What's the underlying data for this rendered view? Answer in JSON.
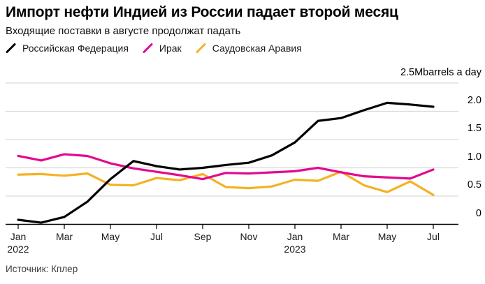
{
  "chart_data": {
    "type": "line",
    "title": "Импорт нефти Индией из России падает второй месяц",
    "subtitle": "Входящие поставки в августе продолжат падать",
    "source": "Источник: Кплер",
    "unit_label": "2.5Mbarrels a day",
    "x": [
      "Jan 2022",
      "Feb 2022",
      "Mar 2022",
      "Apr 2022",
      "May 2022",
      "Jun 2022",
      "Jul 2022",
      "Aug 2022",
      "Sep 2022",
      "Oct 2022",
      "Nov 2022",
      "Dec 2022",
      "Jan 2023",
      "Feb 2023",
      "Mar 2023",
      "Apr 2023",
      "May 2023",
      "Jun 2023",
      "Jul 2023"
    ],
    "x_ticks": [
      {
        "label": "Jan",
        "sublabel": "2022",
        "month_index": 0
      },
      {
        "label": "Mar",
        "month_index": 2
      },
      {
        "label": "May",
        "month_index": 4
      },
      {
        "label": "Jul",
        "month_index": 6
      },
      {
        "label": "Sep",
        "month_index": 8
      },
      {
        "label": "Nov",
        "month_index": 10
      },
      {
        "label": "Jan",
        "sublabel": "2023",
        "month_index": 12
      },
      {
        "label": "Mar",
        "month_index": 14
      },
      {
        "label": "May",
        "month_index": 16
      },
      {
        "label": "Jul",
        "month_index": 18
      }
    ],
    "y_ticks": [
      {
        "label": "2.0",
        "value": 2.0
      },
      {
        "label": "1.5",
        "value": 1.5
      },
      {
        "label": "1.0",
        "value": 1.0
      },
      {
        "label": "0.5",
        "value": 0.5
      },
      {
        "label": "0",
        "value": 0
      }
    ],
    "ylim": [
      0,
      2.5
    ],
    "grid": true,
    "legend_position": "top",
    "series": [
      {
        "name": "Российская Федерация",
        "color": "#000000",
        "values": [
          0.08,
          0.03,
          0.13,
          0.4,
          0.8,
          1.12,
          1.03,
          0.97,
          1.0,
          1.05,
          1.09,
          1.22,
          1.45,
          1.83,
          1.88,
          2.02,
          2.15,
          2.12,
          2.08
        ]
      },
      {
        "name": "Ирак",
        "color": "#E4078F",
        "values": [
          1.21,
          1.13,
          1.24,
          1.21,
          1.08,
          0.99,
          0.93,
          0.87,
          0.8,
          0.91,
          0.9,
          0.92,
          0.94,
          1.0,
          0.92,
          0.85,
          0.83,
          0.81,
          0.97
        ]
      },
      {
        "name": "Саудовская Аравия",
        "color": "#F4B223",
        "values": [
          0.88,
          0.89,
          0.86,
          0.9,
          0.7,
          0.69,
          0.82,
          0.78,
          0.89,
          0.66,
          0.64,
          0.67,
          0.79,
          0.77,
          0.93,
          0.69,
          0.57,
          0.76,
          0.52
        ]
      }
    ]
  },
  "colors": {
    "grid": "#D9D9D9",
    "axis": "#000000",
    "background": "#FFFFFF"
  }
}
